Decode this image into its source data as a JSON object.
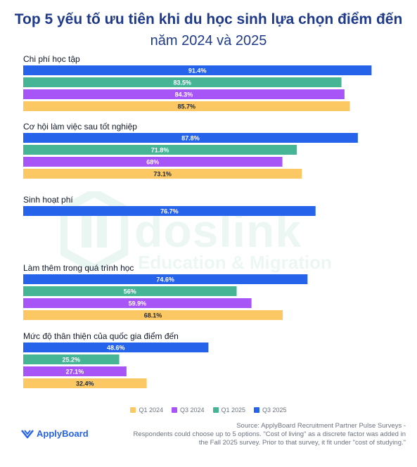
{
  "header": {
    "title": "Top 5 yếu tố ưu tiên khi du học sinh lựa chọn điểm đến",
    "subtitle": "năm 2024 và 2025"
  },
  "watermark": {
    "brand": "doslink",
    "tagline": "Education & Migration"
  },
  "footer": {
    "brand": "ApplyBoard",
    "source_lines": [
      "Source: ApplyBoard Recruitment Partner Pulse Surveys -",
      "Respondents could choose up to 5 options. \"Cost of living\" as a discrete factor was added in",
      "the Fall 2025 survey. Prior to that survey, it fit under \"cost of studying.\""
    ]
  },
  "colors": {
    "Q3 2025": "#2563eb",
    "Q1 2025": "#45b596",
    "Q3 2024": "#a855f7",
    "Q1 2024": "#fcc864"
  },
  "chart_data": {
    "type": "bar",
    "orientation": "horizontal",
    "title": "Top 5 yếu tố ưu tiên khi du học sinh lựa chọn điểm đến",
    "subtitle": "năm 2024 và 2025",
    "xlim": [
      0,
      100
    ],
    "legend_placement": "bottom",
    "legend": [
      "Q1 2024",
      "Q3 2024",
      "Q1 2025",
      "Q3 2025"
    ],
    "categories": [
      {
        "label": "Chi phí học tập",
        "bars": [
          {
            "series": "Q3 2025",
            "value": 91.4,
            "text": "91.4%"
          },
          {
            "series": "Q1 2025",
            "value": 83.5,
            "text": "83.5%"
          },
          {
            "series": "Q3 2024",
            "value": 84.3,
            "text": "84.3%"
          },
          {
            "series": "Q1 2024",
            "value": 85.7,
            "text": "85.7%"
          }
        ]
      },
      {
        "label": "Cơ hội làm việc sau tốt nghiệp",
        "bars": [
          {
            "series": "Q3 2025",
            "value": 87.8,
            "text": "87.8%"
          },
          {
            "series": "Q1 2025",
            "value": 71.8,
            "text": "71.8%"
          },
          {
            "series": "Q3 2024",
            "value": 68,
            "text": "68%"
          },
          {
            "series": "Q1 2024",
            "value": 73.1,
            "text": "73.1%"
          }
        ]
      },
      {
        "label": "Sinh hoạt phí",
        "bars": [
          {
            "series": "Q3 2025",
            "value": 76.7,
            "text": "76.7%"
          }
        ]
      },
      {
        "label": "Làm thêm trong quá trình học",
        "bars": [
          {
            "series": "Q3 2025",
            "value": 74.6,
            "text": "74.6%"
          },
          {
            "series": "Q1 2025",
            "value": 56,
            "text": "56%"
          },
          {
            "series": "Q3 2024",
            "value": 59.9,
            "text": "59.9%"
          },
          {
            "series": "Q1 2024",
            "value": 68.1,
            "text": "68.1%"
          }
        ]
      },
      {
        "label": "Mức độ thân thiện của quốc gia điểm đến",
        "bars": [
          {
            "series": "Q3 2025",
            "value": 48.6,
            "text": "48.6%"
          },
          {
            "series": "Q1 2025",
            "value": 25.2,
            "text": "25.2%"
          },
          {
            "series": "Q3 2024",
            "value": 27.1,
            "text": "27.1%"
          },
          {
            "series": "Q1 2024",
            "value": 32.4,
            "text": "32.4%"
          }
        ]
      }
    ]
  }
}
